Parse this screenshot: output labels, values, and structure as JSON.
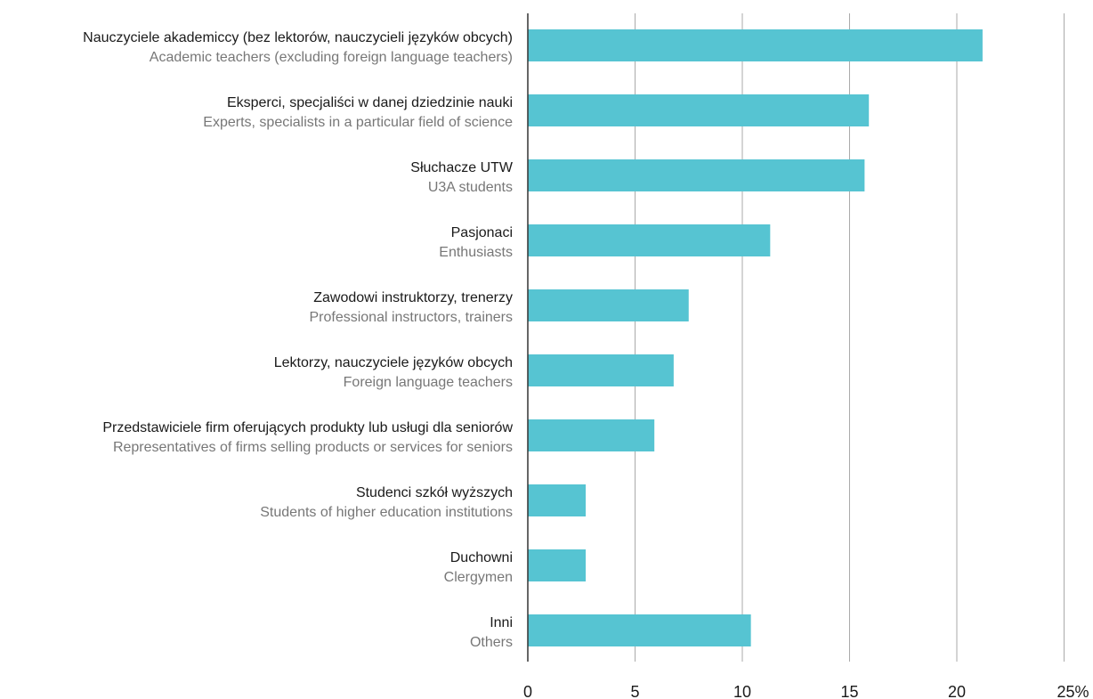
{
  "chart_data": {
    "type": "bar",
    "orientation": "horizontal",
    "categories": [
      {
        "pl": "Nauczyciele akademiccy (bez lektorów, nauczycieli języków obcych)",
        "en": "Academic teachers (excluding foreign language teachers)"
      },
      {
        "pl": "Eksperci, specjaliści w danej dziedzinie nauki",
        "en": "Experts, specialists in a particular field of science"
      },
      {
        "pl": "Słuchacze UTW",
        "en": "U3A students"
      },
      {
        "pl": "Pasjonaci",
        "en": "Enthusiasts"
      },
      {
        "pl": "Zawodowi instruktorzy, trenerzy",
        "en": "Professional instructors, trainers"
      },
      {
        "pl": "Lektorzy, nauczyciele języków obcych",
        "en": "Foreign language teachers"
      },
      {
        "pl": "Przedstawiciele firm oferujących produkty lub usługi dla seniorów",
        "en": "Representatives of firms selling products or services for seniors"
      },
      {
        "pl": "Studenci szkół wyższych",
        "en": "Students of higher education institutions"
      },
      {
        "pl": "Duchowni",
        "en": "Clergymen"
      },
      {
        "pl": "Inni",
        "en": "Others"
      }
    ],
    "values": [
      21.2,
      15.9,
      15.7,
      11.3,
      7.5,
      6.8,
      5.9,
      2.7,
      2.7,
      10.4
    ],
    "xlim": [
      0,
      25
    ],
    "xticks": [
      "0",
      "5",
      "10",
      "15",
      "20",
      "25%"
    ],
    "grid": true,
    "colors": {
      "bar": "#56c4d2",
      "grid": "#aaaaaa",
      "axis": "#333333"
    }
  }
}
